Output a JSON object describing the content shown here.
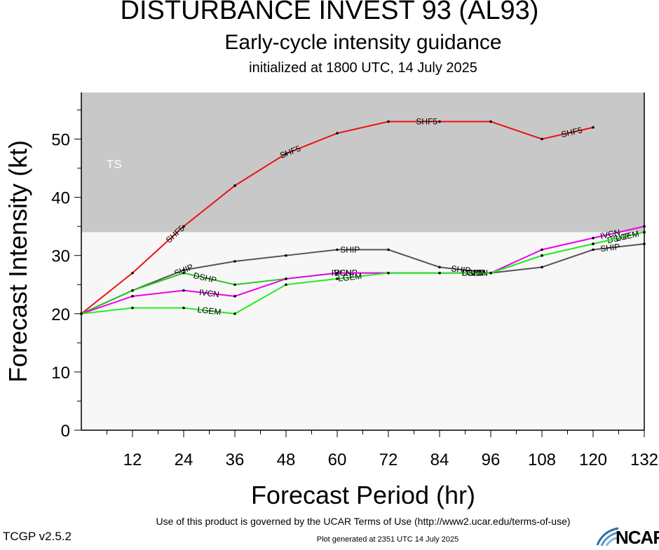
{
  "header": {
    "title": "DISTURBANCE INVEST 93 (AL93)",
    "subtitle": "Early-cycle intensity guidance",
    "initialized": "initialized at 1800 UTC, 14 July 2025"
  },
  "footer": {
    "terms": "Use of this product is governed by the UCAR Terms of Use (http://www2.ucar.edu/terms-of-use)",
    "generated": "Plot generated at 2351 UTC   14 July 2025",
    "version": "TCGP v2.5.2",
    "logo_text": "NCAR",
    "logo_icon": "ncar-logo-icon"
  },
  "chart_data": {
    "type": "line",
    "xlabel": "Forecast Period (hr)",
    "ylabel": "Forecast Intensity (kt)",
    "xlim": [
      0,
      132
    ],
    "ylim": [
      0,
      58
    ],
    "xticks": [
      12,
      24,
      36,
      48,
      60,
      72,
      84,
      96,
      108,
      120,
      132
    ],
    "yticks": [
      0,
      10,
      20,
      30,
      40,
      50
    ],
    "grid": false,
    "bands": [
      {
        "label": "TS",
        "from": 34,
        "to": 58,
        "color": "#c8c8c8"
      },
      {
        "label": "",
        "from": 0,
        "to": 34,
        "color": "#f7f7f7"
      }
    ],
    "series": [
      {
        "name": "SHF5",
        "color": "#ee1111",
        "x": [
          0,
          12,
          24,
          36,
          48,
          60,
          72,
          84,
          96,
          108,
          120
        ],
        "values": [
          20,
          27,
          35,
          42,
          47.5,
          51,
          53,
          53,
          53,
          50,
          52
        ],
        "label_x": [
          22,
          49,
          81,
          115
        ]
      },
      {
        "name": "SHIP",
        "color": "#555555",
        "x": [
          0,
          12,
          24,
          36,
          48,
          60,
          72,
          84,
          96,
          108,
          120,
          132
        ],
        "values": [
          20,
          24,
          27.5,
          29,
          30,
          31,
          31,
          28,
          27,
          28,
          31,
          32
        ],
        "label_x": [
          24,
          63,
          89,
          124
        ]
      },
      {
        "name": "DSHP",
        "color": "#22cc22",
        "x": [
          0,
          12,
          24,
          36,
          48,
          60,
          72,
          84,
          96,
          108,
          120,
          132
        ],
        "values": [
          20,
          24,
          27,
          25,
          26,
          27,
          27,
          27,
          27,
          30,
          32,
          34
        ],
        "label_x": [
          29,
          62,
          92,
          126
        ]
      },
      {
        "name": "IVCN",
        "color": "#ee00ee",
        "x": [
          0,
          12,
          24,
          36,
          48,
          60,
          72,
          84,
          96,
          108,
          120,
          132
        ],
        "values": [
          20,
          23,
          24,
          23,
          26,
          27,
          27,
          27,
          27,
          31,
          33,
          35
        ],
        "label_x": [
          30,
          61,
          93,
          124
        ]
      },
      {
        "name": "LGEM",
        "color": "#22ee22",
        "x": [
          0,
          12,
          24,
          36,
          48,
          60,
          72,
          84,
          96,
          108,
          120,
          132
        ],
        "values": [
          20,
          21,
          21,
          20,
          25,
          26,
          27,
          27,
          27,
          30,
          32,
          34
        ],
        "label_x": [
          30,
          63,
          92,
          128
        ]
      }
    ]
  }
}
